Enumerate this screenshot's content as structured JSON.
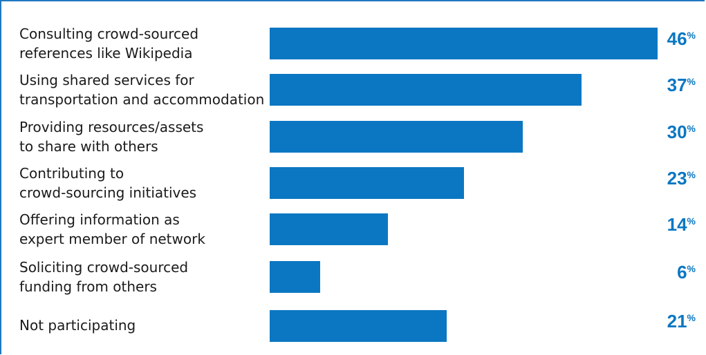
{
  "chart_data": {
    "type": "bar",
    "orientation": "horizontal",
    "categories": [
      "Consulting crowd-sourced\nreferences like Wikipedia",
      "Using shared services for\ntransportation and accommodation",
      "Providing resources/assets\nto share with others",
      "Contributing to\ncrowd-sourcing initiatives",
      "Offering information as\nexpert member of network",
      "Soliciting crowd-sourced\nfunding from others",
      "Not participating"
    ],
    "values": [
      46,
      37,
      30,
      23,
      14,
      6,
      21
    ],
    "value_labels": [
      "46",
      "37",
      "30",
      "23",
      "14",
      "6",
      "21"
    ],
    "unit": "%",
    "xlim": [
      0,
      46
    ],
    "grid": false,
    "colors": {
      "bar": "#0b77c2",
      "value_text": "#0b77c2",
      "border": "#1f78c1",
      "label_text": "#1a1a1a"
    }
  }
}
